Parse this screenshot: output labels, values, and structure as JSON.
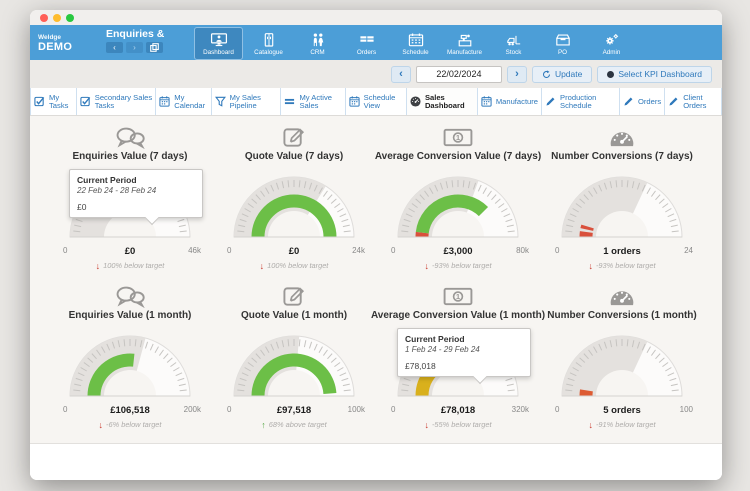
{
  "window": {
    "logo_line1": "Weldge",
    "logo_line2": "DEMO",
    "page_title": "Enquiries &"
  },
  "nav": {
    "items": [
      {
        "label": "Dashboard",
        "icon": "dashboard-icon",
        "active": true
      },
      {
        "label": "Catalogue",
        "icon": "catalogue-icon",
        "active": false
      },
      {
        "label": "CRM",
        "icon": "crm-icon",
        "active": false
      },
      {
        "label": "Orders",
        "icon": "orders-icon",
        "active": false
      },
      {
        "label": "Schedule",
        "icon": "schedule-icon",
        "active": false
      },
      {
        "label": "Manufacture",
        "icon": "manufacture-icon",
        "active": false
      },
      {
        "label": "Stock",
        "icon": "stock-icon",
        "active": false
      },
      {
        "label": "PO",
        "icon": "po-icon",
        "active": false
      },
      {
        "label": "Admin",
        "icon": "admin-icon",
        "active": false
      }
    ]
  },
  "toolbar": {
    "date_value": "22/02/2024",
    "prev_label": "‹",
    "next_label": "›",
    "update_label": "Update",
    "select_kpi_label": "Select KPI Dashboard"
  },
  "tabs": [
    {
      "label": "My Tasks",
      "icon": "tasks-icon",
      "active": false
    },
    {
      "label": "Secondary Sales Tasks",
      "icon": "tasks-icon",
      "active": false
    },
    {
      "label": "My Calendar",
      "icon": "calendar-icon",
      "active": false
    },
    {
      "label": "My Sales Pipeline",
      "icon": "funnel-icon",
      "active": false
    },
    {
      "label": "My Active Sales",
      "icon": "lines-icon",
      "active": false
    },
    {
      "label": "Schedule View",
      "icon": "calendar-icon",
      "active": false
    },
    {
      "label": "Sales Dashboard",
      "icon": "gauge-icon",
      "active": true
    },
    {
      "label": "Manufacture",
      "icon": "calendar-icon",
      "active": false
    },
    {
      "label": "Production Schedule",
      "icon": "pencil-icon",
      "active": false
    },
    {
      "label": "Orders",
      "icon": "pencil-icon",
      "active": false
    },
    {
      "label": "Client Orders",
      "icon": "pencil-icon",
      "active": false
    }
  ],
  "chart_data": {
    "type": "gauge",
    "gauges": [
      {
        "title": "Enquiries Value (7 days)",
        "icon": "chat-icon",
        "min_label": "0",
        "max_label": "46k",
        "max_value": 46000,
        "value": 0,
        "value_label": "£0",
        "delta_label": "100% below target",
        "delta_dir": "down",
        "grey_end_deg": 65,
        "arcs": [],
        "tooltip": {
          "title": "Current Period",
          "range": "22 Feb 24 - 28 Feb 24",
          "value": "£0"
        }
      },
      {
        "title": "Quote Value (7 days)",
        "icon": "quote-icon",
        "min_label": "0",
        "max_label": "24k",
        "max_value": 24000,
        "value": 0,
        "value_label": "£0",
        "delta_label": "100% below target",
        "delta_dir": "down",
        "grey_end_deg": 122,
        "arcs": [
          {
            "from": 0,
            "to": 180,
            "color": "#6cbf47"
          }
        ]
      },
      {
        "title": "Average Conversion Value (7 days)",
        "icon": "money-icon",
        "min_label": "0",
        "max_label": "80k",
        "max_value": 80000,
        "value": 3000,
        "value_label": "£3,000",
        "delta_label": "-93% below target",
        "delta_dir": "down",
        "grey_end_deg": 110,
        "arcs": [
          {
            "from": 0,
            "to": 7,
            "color": "#d9503c"
          },
          {
            "from": 7,
            "to": 135,
            "color": "#6cbf47"
          }
        ]
      },
      {
        "title": "Number Conversions (7 days)",
        "icon": "speedo-icon",
        "min_label": "0",
        "max_label": "24",
        "max_value": 24,
        "value": 1,
        "value_label": "1 orders",
        "delta_label": "-93% below target",
        "delta_dir": "down",
        "grey_end_deg": 115,
        "arcs": [
          {
            "from": 0,
            "to": 8,
            "color": "#d9503c"
          },
          {
            "from": 12,
            "to": 17,
            "color": "#d9503c"
          }
        ]
      },
      {
        "title": "Enquiries Value (1 month)",
        "icon": "chat-icon",
        "min_label": "0",
        "max_label": "200k",
        "max_value": 200000,
        "value": 106518,
        "value_label": "£106,518",
        "delta_label": "-6% below target",
        "delta_dir": "down",
        "grey_end_deg": 105,
        "arcs": [
          {
            "from": 0,
            "to": 96,
            "color": "#6cbf47"
          }
        ]
      },
      {
        "title": "Quote Value (1 month)",
        "icon": "quote-icon",
        "min_label": "0",
        "max_label": "100k",
        "max_value": 100000,
        "value": 97518,
        "value_label": "£97,518",
        "delta_label": "68% above target",
        "delta_dir": "up",
        "grey_end_deg": 95,
        "arcs": [
          {
            "from": 0,
            "to": 176,
            "color": "#6cbf47"
          }
        ]
      },
      {
        "title": "Average Conversion Value (1 month)",
        "icon": "money-icon",
        "min_label": "0",
        "max_label": "320k",
        "max_value": 320000,
        "value": 78018,
        "value_label": "£78,018",
        "delta_label": "-55% below target",
        "delta_dir": "down",
        "grey_end_deg": 80,
        "arcs": [
          {
            "from": 0,
            "to": 44,
            "color": "#d9b01c"
          }
        ],
        "tooltip": {
          "title": "Current Period",
          "range": "1 Feb 24 - 29 Feb 24",
          "value": "£78,018"
        }
      },
      {
        "title": "Number Conversions (1 month)",
        "icon": "speedo-icon",
        "min_label": "0",
        "max_label": "100",
        "max_value": 100,
        "value": 5,
        "value_label": "5 orders",
        "delta_label": "-91% below target",
        "delta_dir": "down",
        "grey_end_deg": 115,
        "arcs": [
          {
            "from": 0,
            "to": 9,
            "color": "#dd5b33"
          }
        ]
      }
    ]
  }
}
